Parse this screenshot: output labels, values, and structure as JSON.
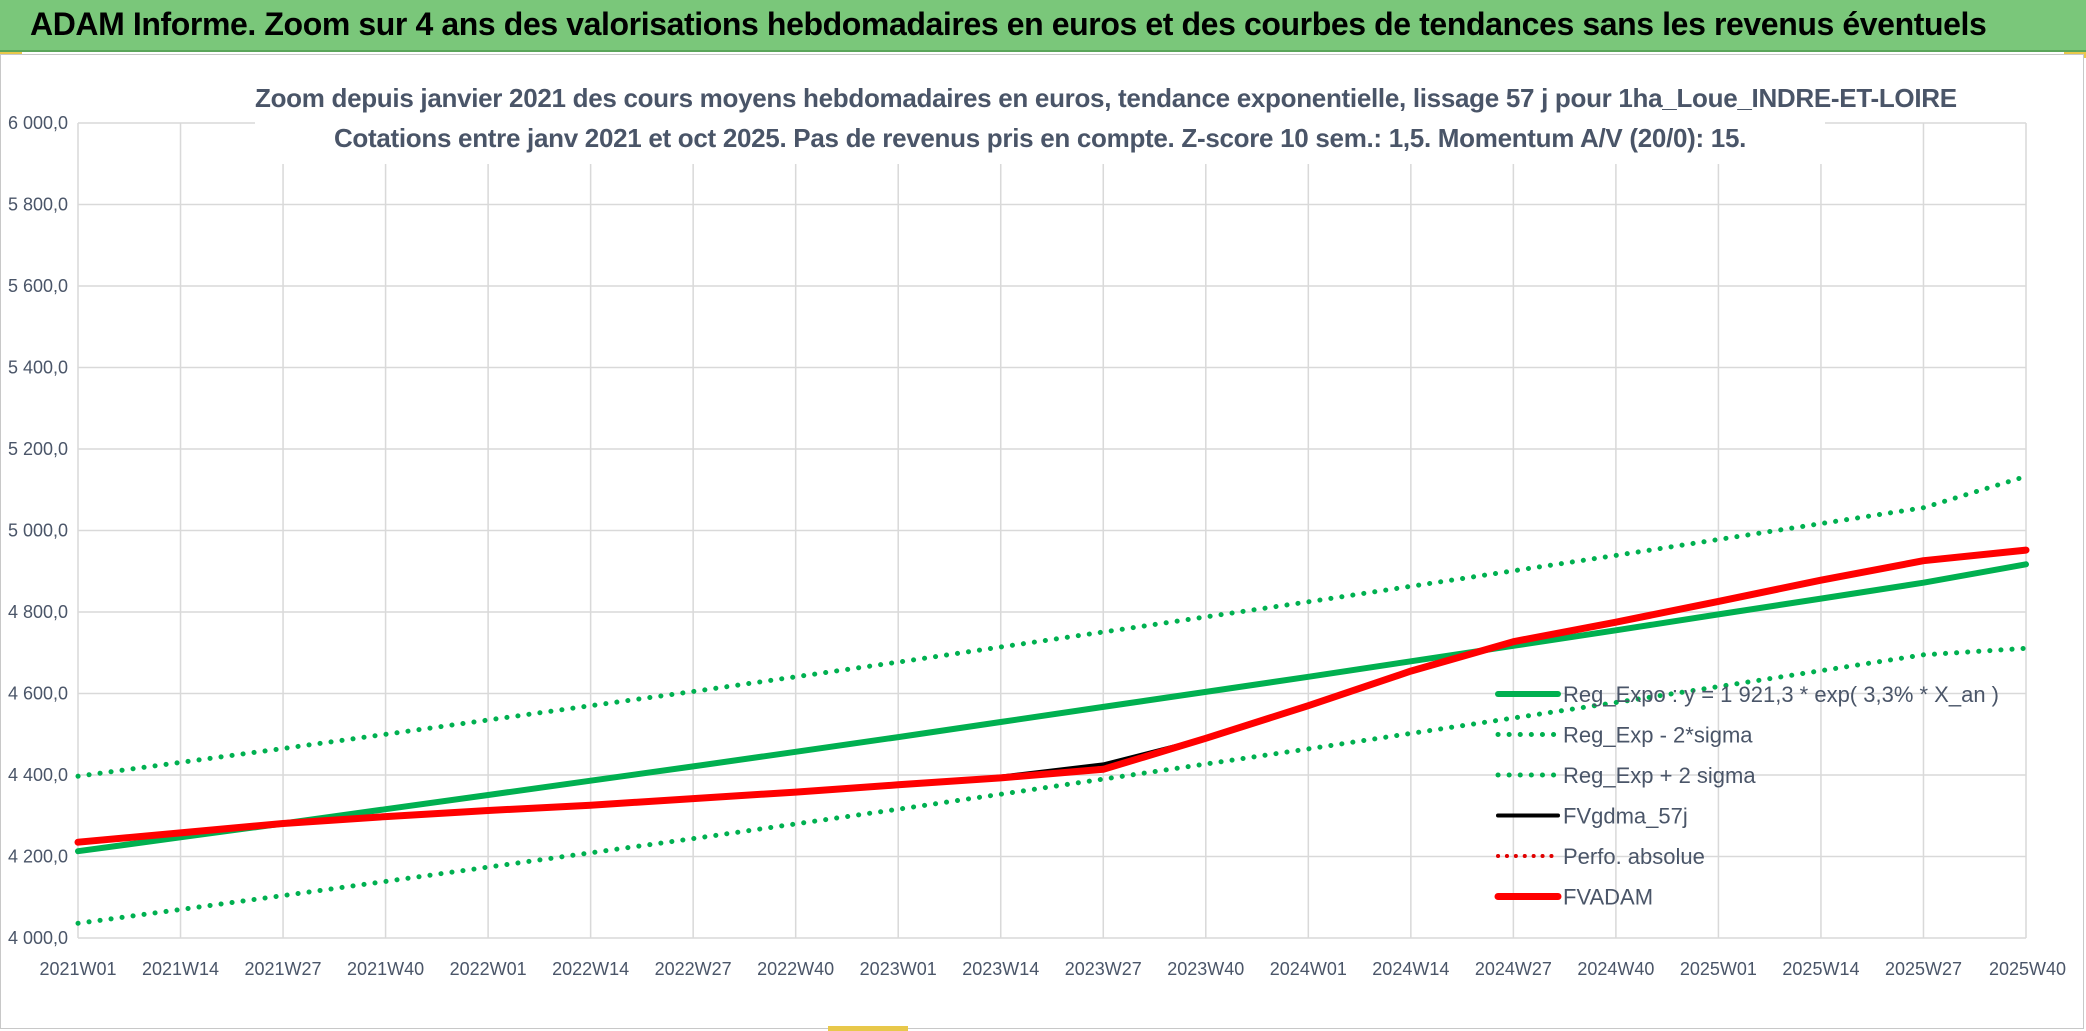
{
  "banner": {
    "title": "ADAM Informe. Zoom sur 4 ans des valorisations hebdomadaires en euros et des courbes de tendances sans les revenus éventuels"
  },
  "chart_data": {
    "type": "line",
    "title": "Zoom depuis janvier 2021 des cours moyens hebdomadaires en euros, tendance exponentielle, lissage 57 j pour 1ha_Loue_INDRE-ET-LOIRE",
    "subtitle": "Cotations entre janv 2021 et oct 2025. Pas de revenus pris en compte. Z-score 10 sem.: 1,5. Momentum A/V (20/0): 15.",
    "xlabel": "",
    "ylabel": "",
    "ylim": [
      4000,
      6000
    ],
    "y_ticks": [
      {
        "value": 6000,
        "label": "6 000,0"
      },
      {
        "value": 5800,
        "label": "5 800,0"
      },
      {
        "value": 5600,
        "label": "5 600,0"
      },
      {
        "value": 5400,
        "label": "5 400,0"
      },
      {
        "value": 5200,
        "label": "5 200,0"
      },
      {
        "value": 5000,
        "label": "5 000,0"
      },
      {
        "value": 4800,
        "label": "4 800,0"
      },
      {
        "value": 4600,
        "label": "4 600,0"
      },
      {
        "value": 4400,
        "label": "4 400,0"
      },
      {
        "value": 4200,
        "label": "4 200,0"
      },
      {
        "value": 4000,
        "label": "4 000,0"
      }
    ],
    "categories": [
      "2021W01",
      "2021W14",
      "2021W27",
      "2021W40",
      "2022W01",
      "2022W14",
      "2022W27",
      "2022W40",
      "2023W01",
      "2023W14",
      "2023W27",
      "2023W40",
      "2024W01",
      "2024W14",
      "2024W27",
      "2024W40",
      "2025W01",
      "2025W14",
      "2025W27",
      "2025W40"
    ],
    "grid": true,
    "legend_position": "bottom-right",
    "series": [
      {
        "name": "Reg_Expo : y = 1 921,3 * exp( 3,3% *  X_an )",
        "color": "#00b050",
        "style": "solid",
        "width": 6,
        "values": [
          4213,
          4247,
          4281,
          4316,
          4351,
          4386,
          4421,
          4457,
          4493,
          4530,
          4567,
          4604,
          4641,
          4679,
          4717,
          4755,
          4794,
          4833,
          4872,
          4917
        ]
      },
      {
        "name": "Reg_Exp - 2*sigma",
        "color": "#00b050",
        "style": "dotted",
        "width": 5,
        "values": [
          4036,
          4070,
          4104,
          4139,
          4174,
          4209,
          4244,
          4280,
          4316,
          4353,
          4390,
          4427,
          4464,
          4502,
          4540,
          4578,
          4617,
          4656,
          4695,
          4711
        ]
      },
      {
        "name": "Reg_Exp + 2 sigma",
        "color": "#00b050",
        "style": "dotted",
        "width": 5,
        "values": [
          4397,
          4431,
          4465,
          4500,
          4535,
          4570,
          4605,
          4641,
          4677,
          4714,
          4751,
          4788,
          4825,
          4863,
          4901,
          4939,
          4978,
          5017,
          5056,
          5133
        ]
      },
      {
        "name": "FVgdma_57j",
        "color": "#000000",
        "style": "solid",
        "width": 4,
        "values": [
          4235,
          4258,
          4281,
          4298,
          4313,
          4326,
          4342,
          4358,
          4376,
          4396,
          4426,
          4490,
          4570,
          4655,
          4727,
          4775,
          4826,
          4878,
          4926,
          4950
        ]
      },
      {
        "name": "Perfo. absolue",
        "color": "#e00000",
        "style": "dotted",
        "width": 4,
        "values": [
          4235,
          4258,
          4281,
          4298,
          4313,
          4326,
          4342,
          4358,
          4376,
          4393,
          4418,
          4490,
          4570,
          4655,
          4727,
          4775,
          4826,
          4878,
          4926,
          4952
        ]
      },
      {
        "name": "FVADAM",
        "color": "#ff0000",
        "style": "solid",
        "width": 7,
        "values": [
          4235,
          4258,
          4281,
          4298,
          4313,
          4326,
          4342,
          4358,
          4376,
          4393,
          4414,
          4490,
          4570,
          4655,
          4727,
          4775,
          4826,
          4878,
          4926,
          4952
        ]
      }
    ],
    "legend_order": [
      0,
      1,
      2,
      3,
      4,
      5
    ]
  }
}
